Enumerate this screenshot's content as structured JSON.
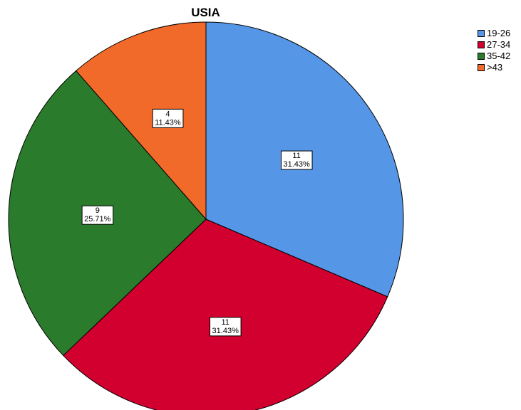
{
  "chart_data": {
    "type": "pie",
    "title": "USIA",
    "start": "12 o'clock",
    "direction": "clockwise",
    "legend_placement": "top-right",
    "slices": [
      {
        "label": "19-26",
        "count": "11",
        "percent": "31.43%",
        "value": 11,
        "color": "#5596e6"
      },
      {
        "label": "27-34",
        "count": "11",
        "percent": "31.43%",
        "value": 11,
        "color": "#d2002e"
      },
      {
        "label": "35-42",
        "count": "9",
        "percent": "25.71%",
        "value": 9,
        "color": "#2a7b2b"
      },
      {
        "label": ">43",
        "count": "4",
        "percent": "11.43%",
        "value": 4,
        "color": "#f26a2a"
      }
    ]
  }
}
